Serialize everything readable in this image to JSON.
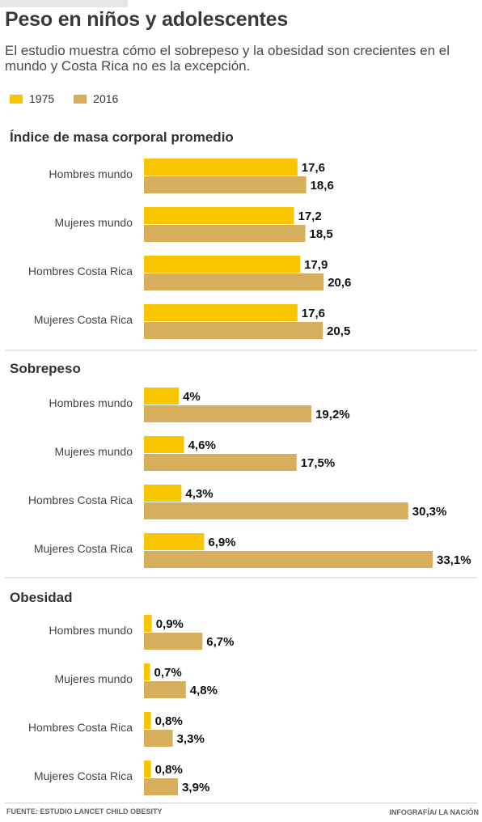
{
  "title": "Peso en niños y adolescentes",
  "subtitle": "El estudio muestra cómo el sobrepeso y la obesidad son crecientes en el mundo y Costa Rica no es la excepción.",
  "legend": [
    {
      "label": "1975",
      "color": "#f7c600"
    },
    {
      "label": "2016",
      "color": "#d6ae5c"
    }
  ],
  "footer": {
    "source": "FUENTE: ESTUDIO LANCET CHILD OBESITY",
    "credit": "INFOGRAFÍA/ LA NACIÓN"
  },
  "chart_data": [
    {
      "type": "bar",
      "orientation": "horizontal",
      "title": "Índice de masa corporal promedio",
      "categories": [
        "Hombres mundo",
        "Mujeres mundo",
        "Hombres Costa Rica",
        "Mujeres Costa Rica"
      ],
      "series": [
        {
          "name": "1975",
          "values": [
            17.6,
            17.2,
            17.9,
            17.6
          ],
          "labels": [
            "17,6",
            "17,2",
            "17,9",
            "17,6"
          ]
        },
        {
          "name": "2016",
          "values": [
            18.6,
            18.5,
            20.6,
            20.5
          ],
          "labels": [
            "18,6",
            "18,5",
            "20,6",
            "20,5"
          ]
        }
      ],
      "xlim": [
        0,
        33.1
      ]
    },
    {
      "type": "bar",
      "orientation": "horizontal",
      "title": "Sobrepeso",
      "categories": [
        "Hombres mundo",
        "Mujeres mundo",
        "Hombres Costa Rica",
        "Mujeres Costa Rica"
      ],
      "series": [
        {
          "name": "1975",
          "values": [
            4,
            4.6,
            4.3,
            6.9
          ],
          "labels": [
            "4%",
            "4,6%",
            "4,3%",
            "6,9%"
          ]
        },
        {
          "name": "2016",
          "values": [
            19.2,
            17.5,
            30.3,
            33.1
          ],
          "labels": [
            "19,2%",
            "17,5%",
            "30,3%",
            "33,1%"
          ]
        }
      ],
      "xlim": [
        0,
        33.1
      ]
    },
    {
      "type": "bar",
      "orientation": "horizontal",
      "title": "Obesidad",
      "categories": [
        "Hombres mundo",
        "Mujeres mundo",
        "Hombres Costa Rica",
        "Mujeres Costa Rica"
      ],
      "series": [
        {
          "name": "1975",
          "values": [
            0.9,
            0.7,
            0.8,
            0.8
          ],
          "labels": [
            "0,9%",
            "0,7%",
            "0,8%",
            "0,8%"
          ]
        },
        {
          "name": "2016",
          "values": [
            6.7,
            4.8,
            3.3,
            3.9
          ],
          "labels": [
            "6,7%",
            "4,8%",
            "3,3%",
            "3,9%"
          ]
        }
      ],
      "xlim": [
        0,
        33.1
      ]
    }
  ]
}
